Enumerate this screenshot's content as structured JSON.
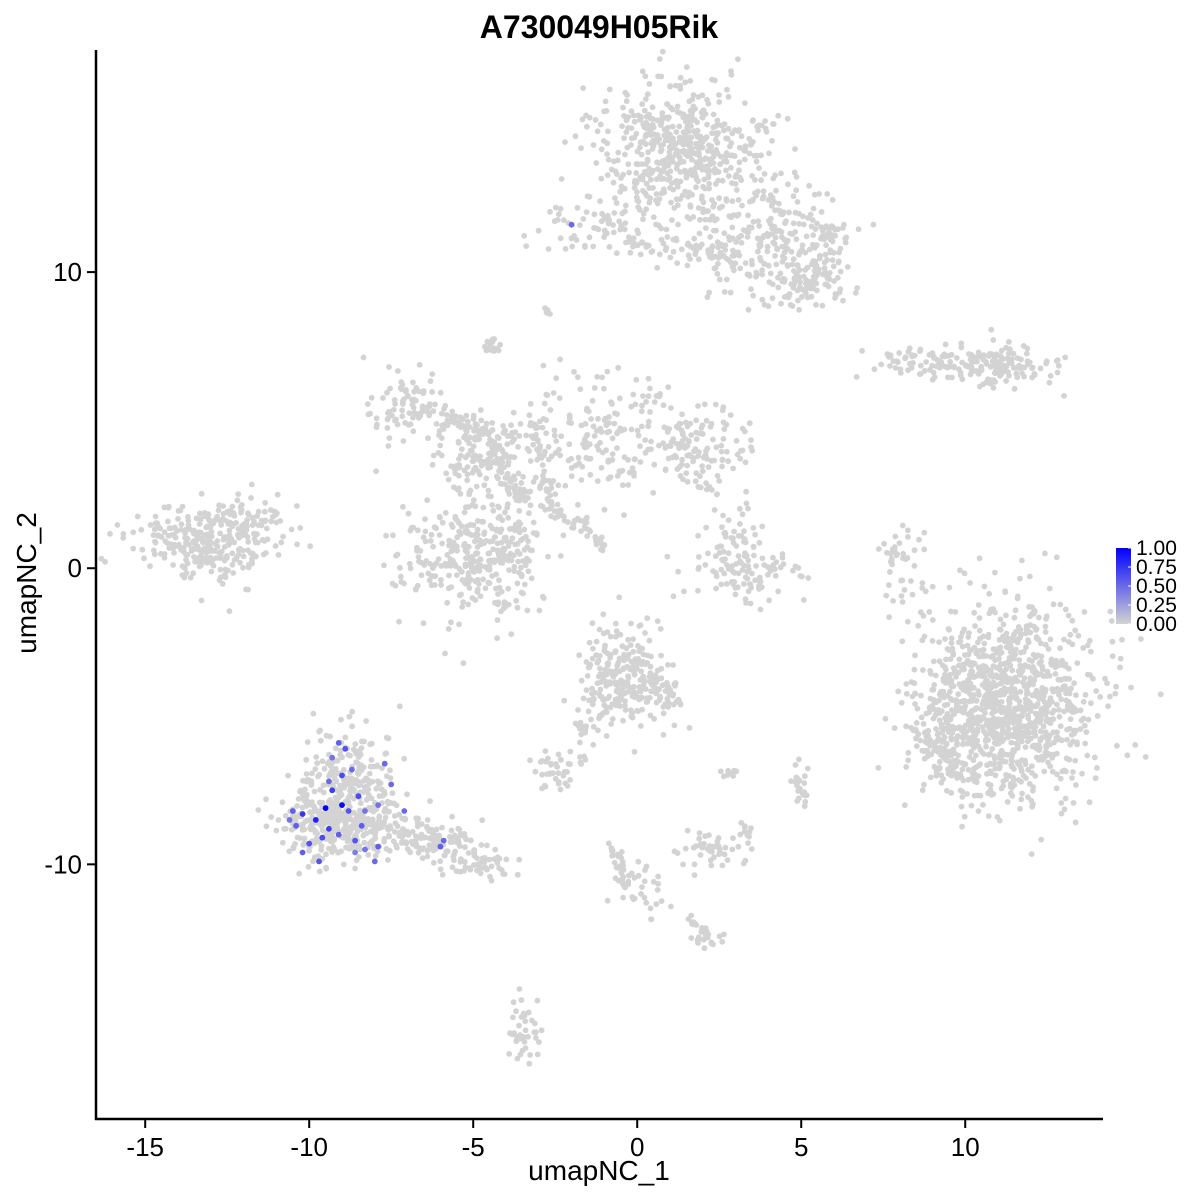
{
  "chart_data": {
    "type": "scatter",
    "title": "A730049H05Rik",
    "xlabel": "umapNC_1",
    "ylabel": "umapNC_2",
    "xlim": [
      -16.5,
      14.2
    ],
    "ylim": [
      -18.6,
      17.5
    ],
    "xticks": [
      -15,
      -10,
      -5,
      0,
      5,
      10
    ],
    "xtick_labels": [
      "-15",
      "-10",
      "-5",
      "0",
      "5",
      "10"
    ],
    "yticks": [
      -10,
      0,
      10
    ],
    "ytick_labels": [
      "-10",
      "0",
      "10"
    ],
    "grid": false,
    "color_scale": {
      "low_color": "#d3d3d3",
      "high_color": "#0000ff",
      "min": 0,
      "max": 1,
      "legend_ticks": [
        1.0,
        0.75,
        0.5,
        0.25,
        0.0
      ],
      "legend_labels": [
        "1.00",
        "0.75",
        "0.50",
        "0.25",
        "0.00"
      ],
      "legend_placement": "right"
    },
    "clusters": [
      {
        "cx": 1.3,
        "cy": 14.2,
        "sx": 1.2,
        "sy": 1.1,
        "n": 520
      },
      {
        "cx": 3.6,
        "cy": 11.3,
        "sx": 1.4,
        "sy": 1.1,
        "n": 260
      },
      {
        "cx": 5.2,
        "cy": 9.8,
        "sx": 0.6,
        "sy": 0.5,
        "n": 110
      },
      {
        "cx": -1.5,
        "cy": 11.6,
        "sx": 1.0,
        "sy": 0.5,
        "n": 70
      },
      {
        "cx": 10.8,
        "cy": 6.9,
        "sx": 1.0,
        "sy": 0.35,
        "n": 150
      },
      {
        "cx": 8.5,
        "cy": 7.0,
        "sx": 0.8,
        "sy": 0.3,
        "n": 50
      },
      {
        "cx": -6.9,
        "cy": 5.3,
        "sx": 0.6,
        "sy": 0.6,
        "n": 90
      },
      {
        "cx": -4.6,
        "cy": 3.9,
        "sx": 0.9,
        "sy": 0.6,
        "n": 110
      },
      {
        "cx": -1.0,
        "cy": 4.6,
        "sx": 1.4,
        "sy": 1.1,
        "n": 170
      },
      {
        "cx": 1.8,
        "cy": 4.0,
        "sx": 0.9,
        "sy": 0.7,
        "n": 120
      },
      {
        "cx": -4.2,
        "cy": 1.2,
        "sx": 0.8,
        "sy": 1.6,
        "n": 120
      },
      {
        "cx": -5.6,
        "cy": 0.2,
        "sx": 1.0,
        "sy": 1.0,
        "n": 160
      },
      {
        "cx": -4.4,
        "cy": 0.6,
        "sx": 0.7,
        "sy": 0.7,
        "n": 90
      },
      {
        "cx": -13.1,
        "cy": 0.9,
        "sx": 1.1,
        "sy": 0.6,
        "n": 260
      },
      {
        "cx": -11.9,
        "cy": 1.8,
        "sx": 0.7,
        "sy": 0.5,
        "n": 60
      },
      {
        "cx": 3.3,
        "cy": -0.2,
        "sx": 0.9,
        "sy": 0.4,
        "n": 90
      },
      {
        "cx": 3.0,
        "cy": 0.9,
        "sx": 0.5,
        "sy": 0.5,
        "n": 40
      },
      {
        "cx": 8.0,
        "cy": 0.2,
        "sx": 0.35,
        "sy": 0.7,
        "n": 30
      },
      {
        "cx": 11.3,
        "cy": -4.6,
        "sx": 1.3,
        "sy": 1.6,
        "n": 1100
      },
      {
        "cx": 9.5,
        "cy": -6.0,
        "sx": 0.6,
        "sy": 0.8,
        "n": 120
      },
      {
        "cx": -0.5,
        "cy": -3.6,
        "sx": 0.6,
        "sy": 0.9,
        "n": 200
      },
      {
        "cx": 0.6,
        "cy": -4.1,
        "sx": 0.5,
        "sy": 0.6,
        "n": 50
      },
      {
        "cx": -2.4,
        "cy": -6.9,
        "sx": 0.45,
        "sy": 0.3,
        "n": 40
      },
      {
        "cx": 2.2,
        "cy": -9.5,
        "sx": 0.5,
        "sy": 0.3,
        "n": 45
      },
      {
        "cx": -8.8,
        "cy": -7.2,
        "sx": 0.7,
        "sy": 0.9,
        "n": 230
      },
      {
        "cx": -9.6,
        "cy": -8.7,
        "sx": 0.7,
        "sy": 0.6,
        "n": 200
      },
      {
        "cx": -8.1,
        "cy": -8.7,
        "sx": 0.6,
        "sy": 0.6,
        "n": 120
      },
      {
        "cx": -6.2,
        "cy": -9.3,
        "sx": 0.7,
        "sy": 0.4,
        "n": 70
      },
      {
        "cx": -4.8,
        "cy": -10.0,
        "sx": 0.6,
        "sy": 0.3,
        "n": 50
      },
      {
        "cx": 0.0,
        "cy": -10.8,
        "sx": 0.4,
        "sy": 0.6,
        "n": 30
      },
      {
        "cx": 2.2,
        "cy": -12.5,
        "sx": 0.3,
        "sy": 0.15,
        "n": 15
      },
      {
        "cx": -3.4,
        "cy": -15.7,
        "sx": 0.25,
        "sy": 0.6,
        "n": 40
      },
      {
        "cx": 5.0,
        "cy": -7.3,
        "sx": 0.2,
        "sy": 0.4,
        "n": 15
      }
    ],
    "paths": [
      {
        "from": [
          -0.5,
          10.9
        ],
        "to": [
          3.2,
          10.6
        ],
        "n": 40,
        "spread": 0.35
      },
      {
        "from": [
          5.5,
          11.3
        ],
        "to": [
          6.2,
          11.3
        ],
        "n": 30,
        "spread": 0.45
      },
      {
        "from": [
          -2.8,
          8.8
        ],
        "to": [
          -2.7,
          8.6
        ],
        "n": 8,
        "spread": 0.12
      },
      {
        "from": [
          -4.5,
          7.6
        ],
        "to": [
          -4.3,
          7.3
        ],
        "n": 18,
        "spread": 0.2
      },
      {
        "from": [
          -5.8,
          5.0
        ],
        "to": [
          -4.3,
          4.4
        ],
        "n": 50,
        "spread": 0.4
      },
      {
        "from": [
          -4.5,
          3.6
        ],
        "to": [
          -3.4,
          2.2
        ],
        "n": 50,
        "spread": 0.4
      },
      {
        "from": [
          -3.2,
          5.0
        ],
        "to": [
          -2.6,
          2.4
        ],
        "n": 40,
        "spread": 0.35
      },
      {
        "from": [
          -3.0,
          2.3
        ],
        "to": [
          -1.5,
          1.3
        ],
        "n": 30,
        "spread": 0.3
      },
      {
        "from": [
          -1.6,
          1.6
        ],
        "to": [
          -1.0,
          0.6
        ],
        "n": 18,
        "spread": 0.15
      },
      {
        "from": [
          2.0,
          2.8
        ],
        "to": [
          2.5,
          2.4
        ],
        "n": 8,
        "spread": 0.15
      },
      {
        "from": [
          7.9,
          1.2
        ],
        "to": [
          7.7,
          -0.6
        ],
        "n": 14,
        "spread": 0.12
      },
      {
        "from": [
          -1.8,
          -5.2
        ],
        "to": [
          -0.6,
          -3.8
        ],
        "n": 25,
        "spread": 0.35
      },
      {
        "from": [
          0.5,
          -3.6
        ],
        "to": [
          1.2,
          -4.6
        ],
        "n": 20,
        "spread": 0.25
      },
      {
        "from": [
          -2.0,
          -6.4
        ],
        "to": [
          -1.5,
          -5.3
        ],
        "n": 12,
        "spread": 0.2
      },
      {
        "from": [
          -7.2,
          -8.9
        ],
        "to": [
          -5.0,
          -9.5
        ],
        "n": 40,
        "spread": 0.5
      },
      {
        "from": [
          -0.8,
          -9.3
        ],
        "to": [
          -0.2,
          -11.3
        ],
        "n": 30,
        "spread": 0.2
      },
      {
        "from": [
          1.6,
          -11.8
        ],
        "to": [
          2.4,
          -12.8
        ],
        "n": 15,
        "spread": 0.15
      },
      {
        "from": [
          3.2,
          -8.5
        ],
        "to": [
          3.5,
          -9.5
        ],
        "n": 10,
        "spread": 0.15
      },
      {
        "from": [
          4.8,
          -7.1
        ],
        "to": [
          5.1,
          -7.7
        ],
        "n": 8,
        "spread": 0.1
      },
      {
        "from": [
          2.6,
          -6.9
        ],
        "to": [
          3.0,
          -6.9
        ],
        "n": 10,
        "spread": 0.15
      },
      {
        "from": [
          9.6,
          -3.0
        ],
        "to": [
          9.2,
          -5.1
        ],
        "n": 20,
        "spread": 0.3
      }
    ],
    "highlighted_points": [
      [
        -9.5,
        -8.1,
        1.0
      ],
      [
        -9.0,
        -8.0,
        0.95
      ],
      [
        -9.8,
        -8.5,
        0.85
      ],
      [
        -10.2,
        -8.3,
        0.75
      ],
      [
        -9.3,
        -7.5,
        0.7
      ],
      [
        -9.4,
        -8.8,
        0.7
      ],
      [
        -9.6,
        -9.1,
        0.65
      ],
      [
        -9.0,
        -7.0,
        0.65
      ],
      [
        -8.5,
        -7.7,
        0.65
      ],
      [
        -8.8,
        -8.2,
        0.6
      ],
      [
        -10.0,
        -9.3,
        0.6
      ],
      [
        -10.4,
        -8.7,
        0.55
      ],
      [
        -9.7,
        -9.9,
        0.6
      ],
      [
        -10.2,
        -9.6,
        0.55
      ],
      [
        -9.1,
        -9.0,
        0.55
      ],
      [
        -8.6,
        -9.2,
        0.6
      ],
      [
        -8.4,
        -8.7,
        0.55
      ],
      [
        -8.9,
        -6.1,
        0.6
      ],
      [
        -9.1,
        -5.9,
        0.55
      ],
      [
        -8.7,
        -6.8,
        0.5
      ],
      [
        -7.5,
        -7.3,
        0.5
      ],
      [
        -7.9,
        -9.4,
        0.55
      ],
      [
        -8.0,
        -9.9,
        0.5
      ],
      [
        -7.1,
        -8.2,
        0.5
      ],
      [
        -7.9,
        -8.0,
        0.45
      ],
      [
        -7.7,
        -6.6,
        0.5
      ],
      [
        -9.3,
        -6.4,
        0.45
      ],
      [
        -8.3,
        -9.5,
        0.45
      ],
      [
        -6.0,
        -9.4,
        0.55
      ],
      [
        -5.9,
        -9.2,
        0.5
      ],
      [
        -10.5,
        -8.2,
        0.55
      ],
      [
        -10.6,
        -8.5,
        0.45
      ],
      [
        -9.4,
        -7.2,
        0.5
      ],
      [
        -8.3,
        -8.2,
        0.45
      ],
      [
        -8.6,
        -9.6,
        0.4
      ],
      [
        -2.0,
        11.6,
        0.5
      ]
    ]
  }
}
